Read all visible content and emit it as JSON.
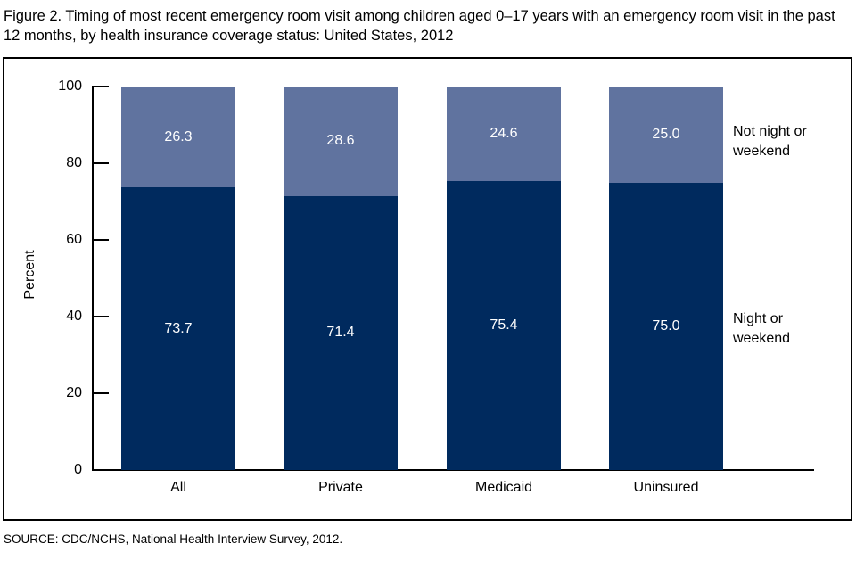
{
  "figure": {
    "title": "Figure 2. Timing of most recent emergency room visit among children aged 0–17 years with an emergency room visit in the past 12 months, by health insurance coverage status: United States, 2012",
    "source": "SOURCE: CDC/NCHS, National Health Interview Survey, 2012."
  },
  "chart_data": {
    "type": "bar",
    "stacked": true,
    "title": "Timing of most recent emergency room visit among children aged 0–17 years with an emergency room visit in the past 12 months, by health insurance coverage status: United States, 2012",
    "categories": [
      "All",
      "Private",
      "Medicaid",
      "Uninsured"
    ],
    "series": [
      {
        "name": "Night or weekend",
        "color": "#002A5E",
        "values": [
          73.7,
          71.4,
          75.4,
          75.0
        ]
      },
      {
        "name": "Not night or weekend",
        "color": "#60739F",
        "values": [
          26.3,
          28.6,
          24.6,
          25.0
        ]
      }
    ],
    "xlabel": "",
    "ylabel": "Percent",
    "ylim": [
      0,
      100
    ],
    "yticks": [
      0,
      20,
      40,
      60,
      80,
      100
    ],
    "grid": false,
    "legend_position": "right-of-last-bar",
    "legend": [
      {
        "text": "Not night or\nweekend",
        "series_index": 1
      },
      {
        "text": "Night or\nweekend",
        "series_index": 0
      }
    ],
    "value_labels": "centered-in-segments",
    "value_label_color": "#ffffff"
  }
}
